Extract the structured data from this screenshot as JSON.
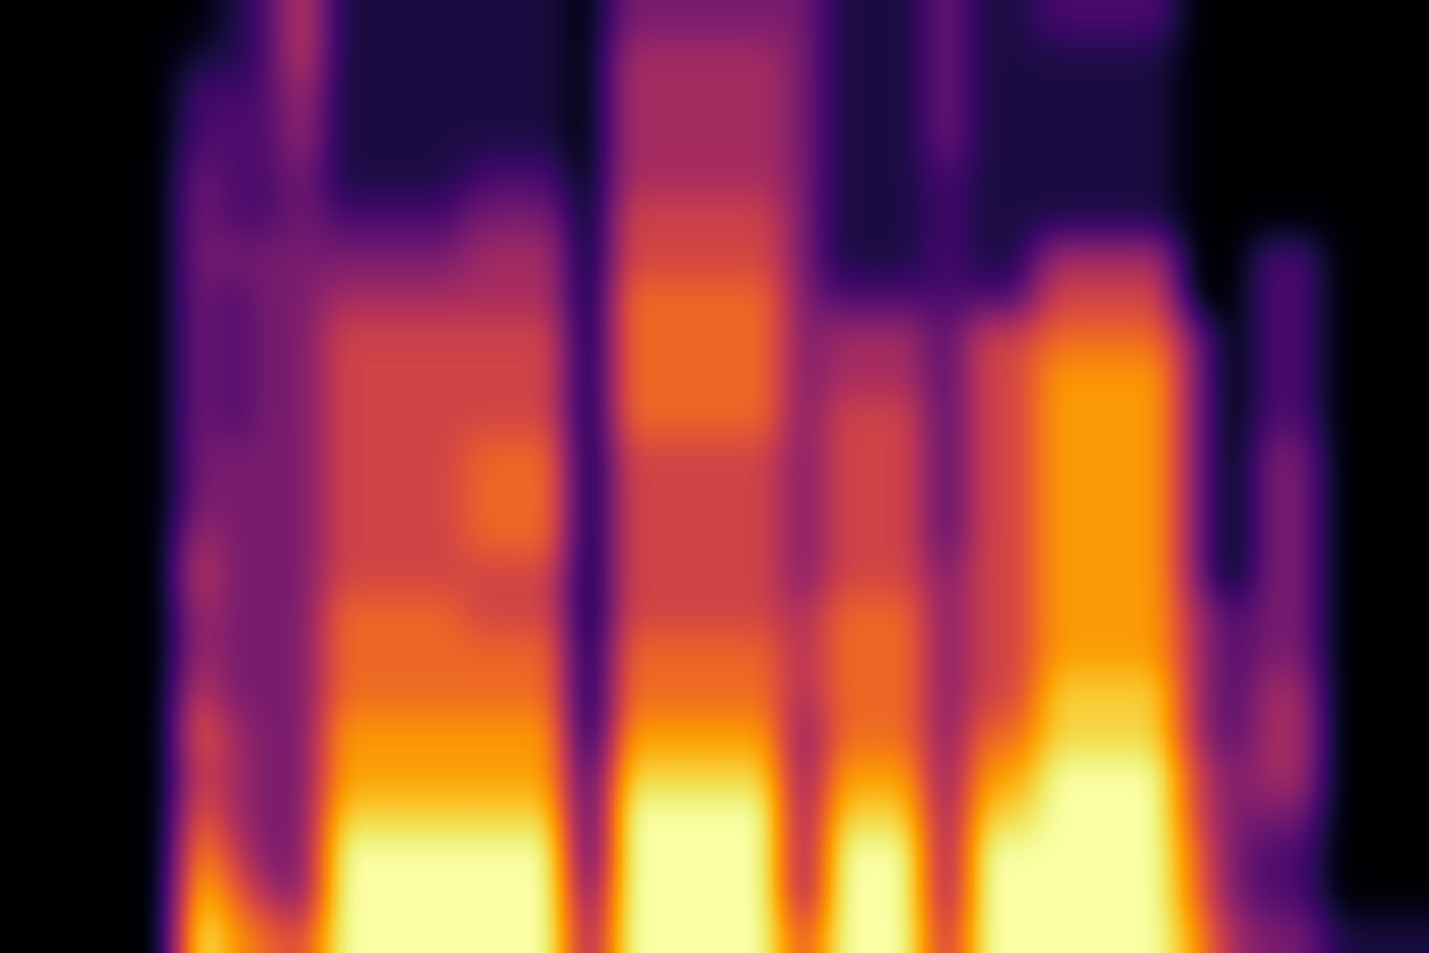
{
  "chart_data": {
    "type": "heatmap",
    "tick_labels": false,
    "color": "inferno",
    "cells": [
      [
        0,
        0,
        0,
        0,
        0,
        0,
        0,
        0,
        0,
        0,
        0,
        0,
        0,
        0,
        0,
        0,
        0,
        0,
        0,
        0,
        0,
        0,
        0,
        0
      ],
      [
        0,
        0,
        0,
        0,
        0,
        0,
        0,
        0,
        0,
        0,
        0,
        0,
        0,
        0,
        0,
        0,
        0,
        0,
        0,
        0,
        0,
        0,
        0,
        0
      ],
      [
        0,
        0,
        0,
        0,
        0,
        0,
        0,
        0,
        0,
        0,
        0,
        0,
        0,
        0,
        0,
        0,
        0,
        0,
        0,
        0,
        0,
        0,
        0,
        0
      ],
      [
        0,
        0,
        0,
        0,
        0,
        0,
        0,
        0,
        0,
        0,
        0,
        0,
        0,
        0,
        0,
        0,
        0,
        0,
        0,
        0,
        0,
        0,
        0,
        0
      ],
      [
        0,
        0,
        0,
        0,
        0,
        0,
        0,
        0,
        0,
        0,
        0,
        0,
        0,
        0,
        0,
        0,
        0,
        0,
        0,
        0,
        0,
        0,
        0,
        0
      ],
      [
        0,
        1,
        2,
        2,
        3,
        3,
        3,
        3,
        3,
        3,
        3,
        3,
        3,
        4,
        5,
        4,
        4,
        5,
        6,
        5,
        6,
        7,
        8,
        9
      ],
      [
        1,
        1,
        2,
        2,
        2,
        2,
        3,
        2,
        2,
        2,
        2,
        3,
        3,
        3,
        3,
        3,
        3,
        3,
        4,
        4,
        4,
        5,
        6,
        7
      ],
      [
        2,
        2,
        2,
        2,
        2,
        2,
        3,
        3,
        3,
        3,
        3,
        3,
        3,
        3,
        3,
        3,
        3,
        3,
        3,
        3,
        3,
        3,
        4,
        6
      ],
      [
        5,
        5,
        4,
        4,
        3,
        3,
        3,
        3,
        3,
        3,
        3,
        3,
        3,
        3,
        3,
        3,
        3,
        3,
        3,
        3,
        3,
        3,
        3,
        5
      ],
      [
        1,
        1,
        1,
        1,
        1,
        2,
        3,
        4,
        5,
        5,
        5,
        5,
        5,
        5,
        5,
        6,
        6,
        6,
        7,
        7,
        8,
        9,
        9,
        9
      ],
      [
        1,
        1,
        1,
        1,
        1,
        2,
        3,
        4,
        5,
        5,
        5,
        5,
        5,
        5,
        5,
        6,
        6,
        6,
        7,
        7,
        8,
        9,
        9,
        9
      ],
      [
        1,
        1,
        1,
        1,
        1,
        2,
        3,
        4,
        5,
        5,
        5,
        5,
        5,
        5,
        5,
        6,
        6,
        6,
        7,
        7,
        8,
        9,
        9,
        9
      ],
      [
        1,
        1,
        1,
        1,
        1,
        2,
        3,
        4,
        5,
        5,
        5,
        5,
        5,
        5,
        5,
        6,
        6,
        6,
        7,
        7,
        8,
        9,
        9,
        9
      ],
      [
        1,
        1,
        1,
        1,
        2,
        3,
        4,
        4,
        5,
        5,
        5,
        6,
        6,
        6,
        5,
        5,
        6,
        6,
        7,
        7,
        8,
        9,
        9,
        9
      ],
      [
        1,
        1,
        1,
        1,
        2,
        3,
        4,
        4,
        5,
        5,
        5,
        6,
        6,
        6,
        5,
        5,
        6,
        6,
        7,
        7,
        8,
        9,
        9,
        9
      ],
      [
        1,
        1,
        1,
        1,
        2,
        3,
        4,
        4,
        5,
        5,
        5,
        6,
        6,
        6,
        5,
        5,
        6,
        6,
        7,
        7,
        8,
        9,
        9,
        9
      ],
      [
        0,
        0,
        0,
        0,
        0,
        0,
        0,
        0,
        0,
        0,
        0,
        0,
        0,
        0,
        0,
        0,
        0,
        0,
        0,
        1,
        1,
        1,
        2,
        3
      ],
      [
        3,
        4,
        4,
        4,
        4,
        5,
        5,
        6,
        6,
        6,
        6,
        5,
        5,
        5,
        5,
        5,
        6,
        6,
        7,
        8,
        9,
        9,
        9,
        9
      ],
      [
        3,
        4,
        4,
        4,
        4,
        5,
        5,
        6,
        6,
        6,
        6,
        5,
        5,
        5,
        5,
        5,
        6,
        6,
        7,
        8,
        9,
        9,
        9,
        9
      ],
      [
        3,
        4,
        4,
        4,
        4,
        5,
        5,
        6,
        6,
        6,
        6,
        5,
        5,
        5,
        5,
        5,
        6,
        6,
        7,
        8,
        9,
        9,
        9,
        9
      ],
      [
        3,
        4,
        4,
        4,
        4,
        5,
        5,
        6,
        6,
        6,
        6,
        5,
        5,
        5,
        5,
        5,
        6,
        6,
        7,
        8,
        9,
        9,
        9,
        9
      ],
      [
        3,
        4,
        4,
        4,
        4,
        5,
        5,
        6,
        6,
        6,
        6,
        5,
        5,
        5,
        5,
        5,
        6,
        6,
        7,
        8,
        9,
        9,
        9,
        9
      ],
      [
        3,
        3,
        3,
        3,
        3,
        3,
        3,
        3,
        3,
        3,
        3,
        3,
        3,
        3,
        3,
        4,
        4,
        4,
        3,
        3,
        3,
        3,
        3,
        5
      ],
      [
        1,
        1,
        1,
        1,
        1,
        1,
        1,
        2,
        4,
        4,
        5,
        5,
        5,
        5,
        5,
        6,
        6,
        6,
        6,
        7,
        8,
        9,
        9,
        9
      ],
      [
        1,
        1,
        1,
        1,
        1,
        1,
        1,
        2,
        4,
        4,
        5,
        5,
        5,
        5,
        5,
        6,
        6,
        6,
        6,
        7,
        8,
        9,
        9,
        9
      ],
      [
        1,
        1,
        1,
        1,
        1,
        1,
        1,
        2,
        4,
        4,
        5,
        5,
        5,
        5,
        5,
        6,
        6,
        6,
        6,
        7,
        8,
        9,
        9,
        9
      ],
      [
        3,
        3,
        3,
        3,
        2,
        2,
        2,
        2,
        2,
        2,
        2,
        2,
        2,
        2,
        3,
        3,
        3,
        3,
        3,
        3,
        3,
        3,
        3,
        4
      ],
      [
        1,
        1,
        1,
        1,
        1,
        1,
        1,
        2,
        5,
        5,
        5,
        5,
        5,
        5,
        5,
        5,
        5,
        5,
        6,
        7,
        8,
        9,
        9,
        9
      ],
      [
        1,
        1,
        1,
        1,
        1,
        1,
        1,
        2,
        5,
        5,
        5,
        5,
        5,
        5,
        5,
        5,
        5,
        5,
        6,
        7,
        8,
        9,
        9,
        9
      ],
      [
        2,
        1,
        1,
        1,
        1,
        1,
        4,
        5,
        6,
        7,
        7,
        7,
        7,
        7,
        7,
        7,
        7,
        8,
        8,
        9,
        9,
        9,
        9,
        9
      ],
      [
        2,
        1,
        1,
        1,
        1,
        1,
        4,
        5,
        6,
        7,
        7,
        7,
        7,
        7,
        7,
        7,
        7,
        8,
        8,
        9,
        9,
        9,
        9,
        9
      ],
      [
        2,
        1,
        1,
        1,
        1,
        1,
        4,
        5,
        6,
        7,
        7,
        7,
        7,
        7,
        7,
        7,
        7,
        8,
        8,
        9,
        9,
        9,
        9,
        9
      ],
      [
        2,
        1,
        1,
        1,
        1,
        1,
        4,
        5,
        6,
        7,
        7,
        7,
        7,
        7,
        7,
        7,
        7,
        8,
        8,
        9,
        9,
        9,
        9,
        9
      ],
      [
        0,
        0,
        0,
        0,
        0,
        0,
        0,
        0,
        3,
        3,
        3,
        3,
        3,
        3,
        3,
        4,
        4,
        4,
        4,
        5,
        5,
        6,
        6,
        7
      ],
      [
        0,
        0,
        0,
        0,
        0,
        0,
        0,
        0,
        0,
        0,
        0,
        0,
        0,
        0,
        0,
        2,
        2,
        2,
        2,
        3,
        3,
        3,
        3,
        4
      ],
      [
        0,
        0,
        0,
        0,
        0,
        0,
        2,
        2,
        2,
        2,
        2,
        3,
        3,
        3,
        3,
        3,
        3,
        4,
        4,
        4,
        3,
        2,
        2,
        3
      ],
      [
        0,
        0,
        0,
        0,
        0,
        0,
        2,
        2,
        2,
        2,
        2,
        3,
        3,
        3,
        3,
        3,
        3,
        4,
        4,
        4,
        3,
        2,
        2,
        3
      ],
      [
        0,
        0,
        0,
        0,
        0,
        0,
        0,
        0,
        0,
        0,
        0,
        0,
        0,
        0,
        0,
        0,
        0,
        0,
        0,
        0,
        0,
        0,
        0,
        1
      ],
      [
        0,
        0,
        0,
        0,
        0,
        0,
        0,
        0,
        0,
        0,
        0,
        0,
        0,
        0,
        0,
        0,
        0,
        0,
        0,
        0,
        0,
        0,
        0,
        1
      ],
      [
        0,
        0,
        0,
        0,
        0,
        0,
        0,
        0,
        0,
        0,
        0,
        0,
        0,
        0,
        0,
        0,
        0,
        0,
        0,
        0,
        0,
        0,
        0,
        1
      ]
    ]
  }
}
